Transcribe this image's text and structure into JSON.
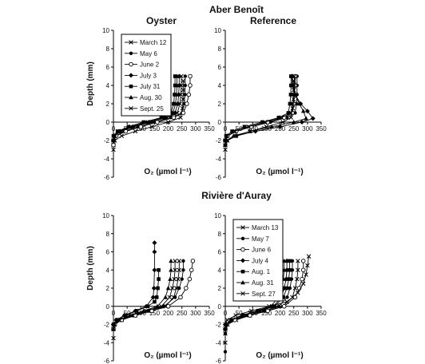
{
  "groups": [
    {
      "title": "Aber Benoît"
    },
    {
      "title": "Rivière d'Auray"
    }
  ],
  "chart_data": [
    {
      "type": "line",
      "group": 0,
      "title": "Oyster",
      "xlabel": "O₂ (µmol l⁻¹)",
      "ylabel": "Depth (mm)",
      "xlim": [
        0,
        350
      ],
      "ylim": [
        -6,
        10
      ],
      "xticks": [
        0,
        50,
        100,
        150,
        200,
        250,
        300,
        350
      ],
      "yticks": [
        -6,
        -4,
        -2,
        0,
        2,
        4,
        6,
        8,
        10
      ],
      "legend": "top-left",
      "series": [
        {
          "name": "March 12",
          "marker": "x",
          "x": [
            255,
            255,
            254,
            252,
            245,
            200,
            140,
            80,
            30,
            5,
            0,
            0
          ],
          "y": [
            4.5,
            3.5,
            2.5,
            1.5,
            0.5,
            0,
            -0.5,
            -1,
            -1.5,
            -2,
            -2.5,
            -3
          ]
        },
        {
          "name": "May 6",
          "marker": "dot",
          "x": [
            262,
            262,
            261,
            258,
            250,
            210,
            150,
            90,
            40,
            8,
            0,
            0
          ],
          "y": [
            5.0,
            4.0,
            3.0,
            2.0,
            1.0,
            0.5,
            0,
            -0.5,
            -1,
            -1.5,
            -2,
            -2.5
          ]
        },
        {
          "name": "June 2",
          "marker": "circle",
          "x": [
            280,
            280,
            275,
            268,
            255,
            220,
            160,
            100,
            45,
            10,
            0,
            0
          ],
          "y": [
            5.0,
            4.0,
            3.0,
            2.0,
            1.0,
            0.5,
            0,
            -0.5,
            -1,
            -1.5,
            -2,
            -2.5
          ]
        },
        {
          "name": "July 3",
          "marker": "diamond",
          "x": [
            240,
            240,
            238,
            235,
            225,
            190,
            130,
            70,
            25,
            3,
            0
          ],
          "y": [
            5.0,
            4.0,
            3.0,
            2.0,
            1.0,
            0.5,
            0,
            -0.5,
            -1,
            -1.5,
            -2
          ]
        },
        {
          "name": "July 31",
          "marker": "square",
          "x": [
            225,
            225,
            223,
            220,
            210,
            175,
            110,
            55,
            15,
            0,
            0
          ],
          "y": [
            5.0,
            4.0,
            3.0,
            2.0,
            1.0,
            0.5,
            0,
            -0.5,
            -1,
            -1.5,
            -2
          ]
        },
        {
          "name": "Aug. 30",
          "marker": "triangle",
          "x": [
            232,
            232,
            230,
            227,
            217,
            180,
            120,
            60,
            20,
            2,
            0
          ],
          "y": [
            5.0,
            4.0,
            3.0,
            2.0,
            1.0,
            0.5,
            0,
            -0.5,
            -1,
            -1.5,
            -2
          ]
        },
        {
          "name": "Sept. 25",
          "marker": "x",
          "x": [
            248,
            248,
            246,
            243,
            233,
            195,
            135,
            75,
            28,
            4,
            0
          ],
          "y": [
            5.0,
            4.0,
            3.0,
            2.0,
            1.0,
            0.5,
            0,
            -0.5,
            -1,
            -1.5,
            -2
          ]
        }
      ]
    },
    {
      "type": "line",
      "group": 0,
      "title": "Reference",
      "xlabel": "O₂ (µmol l⁻¹)",
      "ylabel": "",
      "xlim": [
        0,
        350
      ],
      "ylim": [
        -6,
        10
      ],
      "xticks": [
        0,
        50,
        100,
        150,
        200,
        250,
        300,
        350
      ],
      "yticks": [
        -6,
        -4,
        -2,
        0,
        2,
        4,
        6,
        8,
        10
      ],
      "legend": "",
      "series": [
        {
          "name": "March 12",
          "marker": "x",
          "x": [
            250,
            250,
            249,
            246,
            240,
            210,
            150,
            90,
            40,
            8,
            0,
            0
          ],
          "y": [
            4.5,
            3.5,
            2.5,
            1.5,
            0.5,
            0,
            -0.5,
            -1,
            -1.5,
            -2,
            -2.5,
            -3
          ]
        },
        {
          "name": "May 6",
          "marker": "dot",
          "x": [
            262,
            262,
            262,
            260,
            255,
            225,
            165,
            95,
            40,
            8,
            0
          ],
          "y": [
            5.0,
            4.0,
            3.0,
            2.0,
            1.0,
            0.5,
            0,
            -0.5,
            -1,
            -1.5,
            -2
          ]
        },
        {
          "name": "June 2",
          "marker": "circle",
          "x": [
            255,
            255,
            252,
            250,
            245,
            215,
            155,
            95,
            40,
            8,
            0
          ],
          "y": [
            5.0,
            4.0,
            3.0,
            2.0,
            1.0,
            0.5,
            0,
            -0.5,
            -1,
            -1.5,
            -2
          ]
        },
        {
          "name": "July 3",
          "marker": "diamond",
          "x": [
            245,
            247,
            255,
            275,
            300,
            320,
            280,
            200,
            110,
            40,
            5,
            0
          ],
          "y": [
            5.0,
            4.0,
            3.0,
            2.0,
            1.2,
            0.4,
            0,
            -0.5,
            -1,
            -1.5,
            -2,
            -2.5
          ]
        },
        {
          "name": "July 31",
          "marker": "square",
          "x": [
            240,
            240,
            239,
            236,
            230,
            195,
            135,
            70,
            25,
            3,
            0
          ],
          "y": [
            5.0,
            4.0,
            3.0,
            2.0,
            1.0,
            0.5,
            0,
            -0.5,
            -1,
            -1.5,
            -2
          ]
        },
        {
          "name": "Aug. 30",
          "marker": "triangle",
          "x": [
            243,
            245,
            255,
            270,
            285,
            295,
            250,
            170,
            90,
            30,
            5,
            0
          ],
          "y": [
            5.0,
            4.0,
            3.0,
            2.0,
            1.2,
            0.4,
            0,
            -0.5,
            -1,
            -1.5,
            -2,
            -2.5
          ]
        },
        {
          "name": "Sept. 25",
          "marker": "x",
          "x": [
            252,
            252,
            250,
            247,
            240,
            205,
            145,
            85,
            35,
            6,
            0
          ],
          "y": [
            5.0,
            4.0,
            3.0,
            2.0,
            1.0,
            0.5,
            0,
            -0.5,
            -1,
            -1.5,
            -2
          ]
        }
      ]
    },
    {
      "type": "line",
      "group": 1,
      "title": "",
      "xlabel": "O₂ (µmol l⁻¹)",
      "ylabel": "Depth (mm)",
      "xlim": [
        0,
        350
      ],
      "ylim": [
        -6,
        10
      ],
      "xticks": [
        0,
        50,
        100,
        150,
        200,
        250,
        300,
        350
      ],
      "yticks": [
        -6,
        -4,
        -2,
        0,
        2,
        4,
        6,
        8,
        10
      ],
      "legend": "",
      "series": [
        {
          "name": "March 13",
          "marker": "x",
          "x": [
            240,
            240,
            236,
            230,
            220,
            190,
            140,
            80,
            30,
            5,
            0,
            0
          ],
          "y": [
            5.0,
            4.0,
            3.0,
            2.0,
            1.0,
            0,
            -0.5,
            -1,
            -1.5,
            -2,
            -2.5,
            -3.5
          ]
        },
        {
          "name": "May 7",
          "marker": "dot",
          "x": [
            255,
            255,
            250,
            240,
            225,
            185,
            130,
            70,
            25,
            3,
            0
          ],
          "y": [
            5.0,
            4.0,
            3.0,
            2.0,
            1.0,
            0,
            -0.5,
            -1,
            -1.5,
            -2,
            -2.5
          ]
        },
        {
          "name": "June 6",
          "marker": "circle",
          "x": [
            290,
            285,
            278,
            265,
            245,
            200,
            140,
            80,
            30,
            5,
            0
          ],
          "y": [
            5.0,
            4.0,
            3.0,
            2.0,
            1.0,
            0,
            -0.5,
            -1,
            -1.5,
            -2,
            -2.5
          ]
        },
        {
          "name": "July 4",
          "marker": "diamond",
          "x": [
            150,
            150,
            150,
            148,
            145,
            120,
            80,
            40,
            10,
            0
          ],
          "y": [
            7.0,
            6.0,
            4.0,
            2.0,
            1.0,
            0,
            -0.5,
            -1,
            -1.5,
            -2
          ]
        },
        {
          "name": "Aug. 1",
          "marker": "square",
          "x": [
            165,
            165,
            162,
            158,
            150,
            125,
            85,
            45,
            12,
            0
          ],
          "y": [
            4.0,
            3.0,
            2.0,
            1.0,
            0.5,
            0,
            -0.5,
            -1,
            -1.5,
            -2
          ]
        },
        {
          "name": "Aug. 31",
          "marker": "triangle",
          "x": [
            210,
            210,
            207,
            200,
            190,
            160,
            110,
            60,
            20,
            2,
            0
          ],
          "y": [
            5.0,
            4.0,
            3.0,
            2.0,
            1.0,
            0,
            -0.5,
            -1,
            -1.5,
            -2,
            -2.5
          ]
        },
        {
          "name": "Sept. 27",
          "marker": "x",
          "x": [
            225,
            225,
            222,
            215,
            205,
            175,
            120,
            65,
            22,
            3,
            0
          ],
          "y": [
            5.0,
            4.0,
            3.0,
            2.0,
            1.0,
            0,
            -0.5,
            -1,
            -1.5,
            -2,
            -2.5
          ]
        }
      ]
    },
    {
      "type": "line",
      "group": 1,
      "title": "",
      "xlabel": "O₂ (µmol l⁻¹)",
      "ylabel": "",
      "xlim": [
        0,
        350
      ],
      "ylim": [
        -6,
        10
      ],
      "xticks": [
        0,
        50,
        100,
        150,
        200,
        250,
        300,
        350
      ],
      "yticks": [
        -6,
        -4,
        -2,
        0,
        2,
        4,
        6,
        8,
        10
      ],
      "legend": "top-left",
      "series": [
        {
          "name": "March 13",
          "marker": "x",
          "x": [
            265,
            265,
            262,
            255,
            245,
            210,
            150,
            90,
            40,
            8,
            0,
            0
          ],
          "y": [
            5.0,
            4.0,
            3.0,
            2.0,
            1.0,
            0,
            -0.5,
            -1,
            -1.5,
            -2,
            -3,
            -4
          ]
        },
        {
          "name": "May 7",
          "marker": "dot",
          "x": [
            245,
            245,
            242,
            236,
            226,
            195,
            140,
            80,
            30,
            5,
            0,
            0
          ],
          "y": [
            5.0,
            4.0,
            3.0,
            2.0,
            1.0,
            0,
            -0.5,
            -1,
            -1.5,
            -2,
            -3,
            -5
          ]
        },
        {
          "name": "June 6",
          "marker": "circle",
          "x": [
            285,
            285,
            280,
            270,
            255,
            215,
            155,
            90,
            35,
            6,
            0
          ],
          "y": [
            5.0,
            4.0,
            3.0,
            2.0,
            1.0,
            0,
            -0.5,
            -1,
            -1.5,
            -2,
            -2.5
          ]
        },
        {
          "name": "July 4",
          "marker": "diamond",
          "x": [
            225,
            225,
            222,
            215,
            205,
            175,
            120,
            65,
            22,
            3,
            0
          ],
          "y": [
            5.0,
            4.0,
            3.0,
            2.0,
            1.0,
            0,
            -0.5,
            -1,
            -1.5,
            -2,
            -2.5
          ]
        },
        {
          "name": "Aug. 1",
          "marker": "square",
          "x": [
            235,
            235,
            232,
            225,
            212,
            180,
            125,
            68,
            24,
            3,
            0
          ],
          "y": [
            5.0,
            4.0,
            3.0,
            2.0,
            1.0,
            0,
            -0.5,
            -1,
            -1.5,
            -2,
            -2.5
          ]
        },
        {
          "name": "Aug. 31",
          "marker": "triangle",
          "x": [
            215,
            215,
            212,
            205,
            195,
            165,
            115,
            60,
            20,
            2,
            0
          ],
          "y": [
            5.0,
            4.0,
            3.0,
            2.0,
            1.0,
            0,
            -0.5,
            -1,
            -1.5,
            -2,
            -2.5
          ]
        },
        {
          "name": "Sept. 27",
          "marker": "x",
          "x": [
            305,
            300,
            295,
            285,
            265,
            225,
            160,
            95,
            38,
            7,
            0
          ],
          "y": [
            5.5,
            4.5,
            3.5,
            2.5,
            1.5,
            0.5,
            0,
            -0.5,
            -1,
            -1.5,
            -2
          ]
        }
      ]
    }
  ]
}
